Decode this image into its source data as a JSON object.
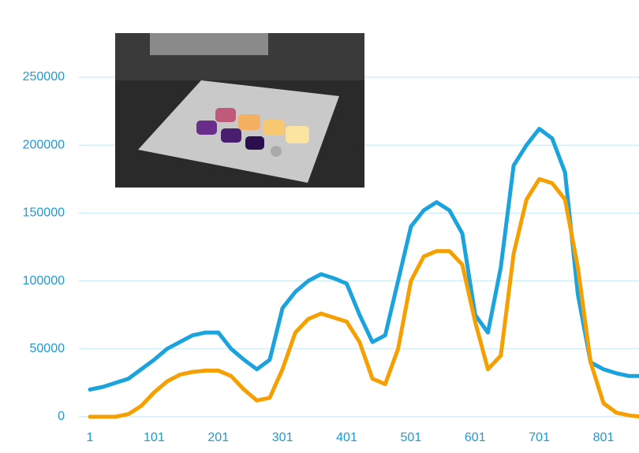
{
  "chart_data": {
    "type": "line",
    "x": [
      1,
      21,
      41,
      61,
      81,
      101,
      121,
      141,
      161,
      181,
      201,
      221,
      241,
      261,
      281,
      301,
      321,
      341,
      361,
      381,
      401,
      421,
      441,
      461,
      481,
      501,
      521,
      541,
      561,
      581,
      601,
      621,
      641,
      661,
      681,
      701,
      721,
      741,
      761,
      781,
      801,
      821,
      841,
      861
    ],
    "series": [
      {
        "color": "#1aa3dc",
        "values": [
          20000,
          22000,
          25000,
          28000,
          35000,
          42000,
          50000,
          55000,
          60000,
          62000,
          62000,
          50000,
          42000,
          35000,
          42000,
          80000,
          92000,
          100000,
          105000,
          102000,
          98000,
          75000,
          55000,
          60000,
          100000,
          140000,
          152000,
          158000,
          152000,
          135000,
          75000,
          62000,
          110000,
          185000,
          200000,
          212000,
          205000,
          180000,
          90000,
          40000,
          35000,
          32000,
          30000,
          30000
        ]
      },
      {
        "color": "#f5a000",
        "values": [
          0,
          0,
          0,
          2000,
          8000,
          18000,
          26000,
          31000,
          33000,
          34000,
          34000,
          30000,
          20000,
          12000,
          14000,
          35000,
          62000,
          72000,
          76000,
          73000,
          70000,
          55000,
          28000,
          24000,
          50000,
          100000,
          118000,
          122000,
          122000,
          112000,
          70000,
          35000,
          45000,
          120000,
          160000,
          175000,
          172000,
          160000,
          110000,
          40000,
          10000,
          3000,
          1000,
          0
        ]
      }
    ],
    "xlim": [
      1,
      861
    ],
    "xticks": [
      1,
      101,
      201,
      301,
      401,
      501,
      601,
      701,
      801
    ],
    "ylim": [
      0,
      250000
    ],
    "yticks": [
      0,
      50000,
      100000,
      150000,
      200000,
      250000
    ],
    "grid": true
  }
}
